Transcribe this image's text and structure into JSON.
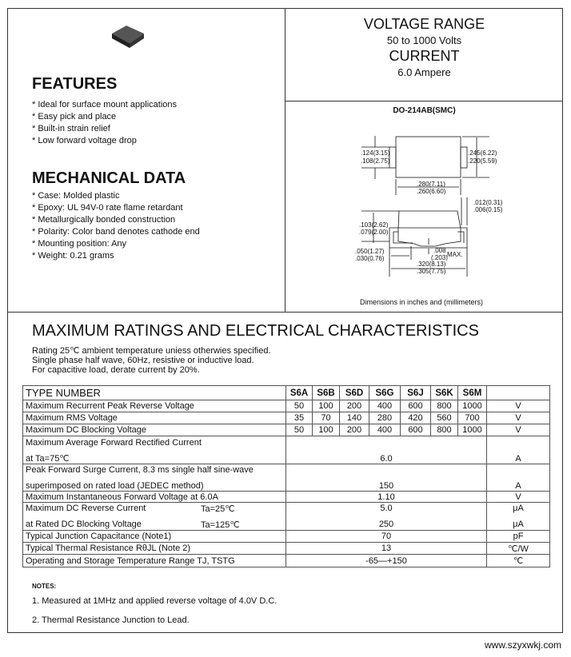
{
  "header": {
    "voltage_title": "VOLTAGE RANGE",
    "voltage_value": "50 to 1000 Volts",
    "current_title": "CURRENT",
    "current_value": "6.0 Ampere"
  },
  "features": {
    "title": "FEATURES",
    "items": [
      "Ideal for surface mount applications",
      "Easy pick and place",
      "Built-in strain relief",
      "Low forward voltage drop"
    ]
  },
  "mechanical": {
    "title": "MECHANICAL DATA",
    "items": [
      "Case: Molded plastic",
      "Epoxy: UL 94V-0 rate flame retardant",
      "Metallurgically bonded construction",
      "Polarity: Color band denotes cathode end",
      "Mounting position: Any",
      "Weight: 0.21 grams"
    ]
  },
  "package": {
    "name": "DO-214AB(SMC)",
    "dims": {
      "h1a": ".124(3.15)",
      "h1b": ".108(2.75)",
      "w1a": ".245(6.22)",
      "w1b": ".220(5.59)",
      "l1a": ".280(7.11)",
      "l1b": ".260(6.60)",
      "t1a": ".012(0.31)",
      "t1b": ".006(0.15)",
      "h2a": ".103(2.62)",
      "h2b": ".079(2.00)",
      "p1a": ".050(1.27)",
      "p1b": ".030(0.76)",
      "g1a": ".008",
      "g1b": "(.203)",
      "g1c": "MAX.",
      "l2a": ".320(8.13)",
      "l2b": ".305(7.75)"
    },
    "caption": "Dimensions in inches and (millimeters)"
  },
  "ratings": {
    "title": "MAXIMUM RATINGS AND ELECTRICAL CHARACTERISTICS",
    "notes": [
      "Rating 25℃ ambient temperature uniess otherwies specified.",
      "Single phase half wave, 60Hz, resistive or inductive load.",
      "For capacitive load, derate current by 20%."
    ]
  },
  "table": {
    "header": "TYPE NUMBER",
    "types": [
      "S6A",
      "S6B",
      "S6D",
      "S6G",
      "S6J",
      "S6K",
      "S6M"
    ],
    "rows": [
      {
        "label": "Maximum Recurrent Peak Reverse Voltage",
        "values": [
          "50",
          "100",
          "200",
          "400",
          "600",
          "800",
          "1000"
        ],
        "unit": "V"
      },
      {
        "label": "Maximum RMS Voltage",
        "values": [
          "35",
          "70",
          "140",
          "280",
          "420",
          "560",
          "700"
        ],
        "unit": "V"
      },
      {
        "label": "Maximum DC Blocking Voltage",
        "values": [
          "50",
          "100",
          "200",
          "400",
          "600",
          "800",
          "1000"
        ],
        "unit": "V"
      }
    ],
    "avg_current": {
      "label1": "Maximum Average Forward Rectified Current",
      "label2": "at Ta=75℃",
      "value": "6.0",
      "unit": "A"
    },
    "surge": {
      "label1": "Peak Forward Surge Current, 8.3 ms single half sine-wave",
      "label2": "superimposed on rated load (JEDEC method)",
      "value": "150",
      "unit": "A"
    },
    "vf": {
      "label": "Maximum Instantaneous Forward Voltage at 6.0A",
      "value": "1.10",
      "unit": "V"
    },
    "ir": {
      "label1": "Maximum DC Reverse Current",
      "cond1": "Ta=25℃",
      "label2": "at Rated DC Blocking Voltage",
      "cond2": "Ta=125℃",
      "value1": "5.0",
      "value2": "250",
      "unit1": "μA",
      "unit2": "μA"
    },
    "cj": {
      "label": "Typical Junction Capacitance (Note1)",
      "value": "70",
      "unit": "pF"
    },
    "rth": {
      "label": "Typical Thermal Resistance RθJL (Note 2)",
      "value": "13",
      "unit": "℃/W"
    },
    "temp": {
      "label": "Operating and Storage Temperature Range TJ, TSTG",
      "value": "-65—+150",
      "unit": "℃"
    }
  },
  "notes": {
    "title": "NOTES:",
    "items": [
      "1. Measured at 1MHz and applied reverse voltage of 4.0V D.C.",
      "2. Thermal Resistance Junction to Lead."
    ]
  },
  "footer": {
    "website": "www.szyxwkj.com"
  }
}
